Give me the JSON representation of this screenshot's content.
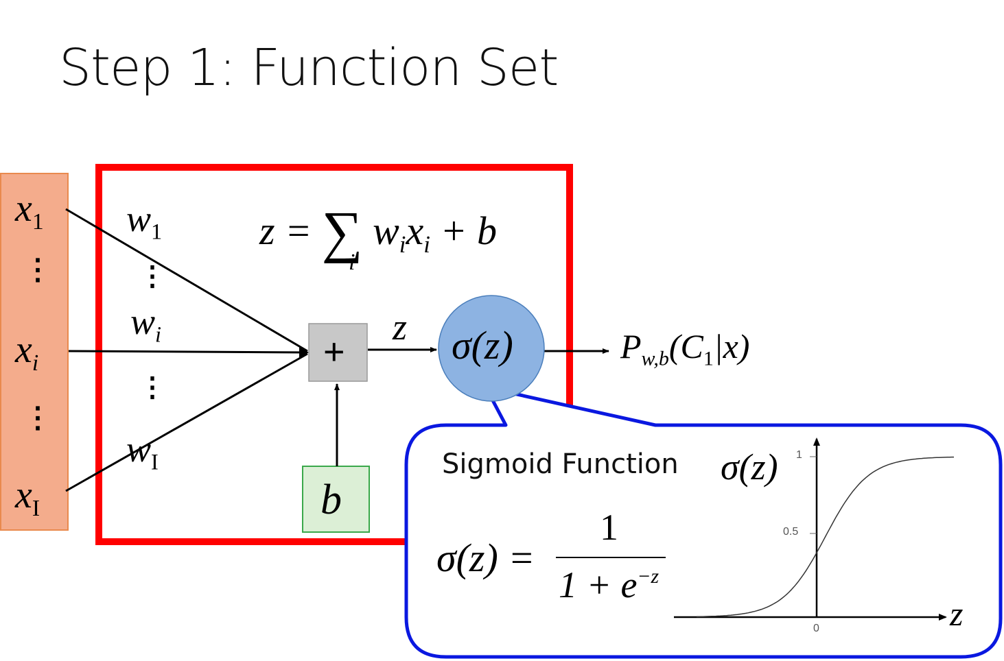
{
  "title": "Step 1: Function Set",
  "inputs": {
    "x1": "x",
    "x1_sub": "1",
    "xi": "x",
    "xi_sub": "i",
    "xI": "x",
    "xI_sub": "I",
    "dots": "⋮"
  },
  "weights": {
    "w1": "w",
    "w1_sub": "1",
    "wi": "w",
    "wi_sub": "i",
    "wI": "w",
    "wI_sub": "I",
    "dots": "⋮"
  },
  "formula_z": {
    "lhs": "z =",
    "sum": "∑",
    "sum_index": "i",
    "term_w": "w",
    "term_w_sub": "i",
    "term_x": "x",
    "term_x_sub": "i",
    "rhs": "+ b"
  },
  "adder": {
    "symbol": "+"
  },
  "bias": {
    "symbol": "b"
  },
  "z_label": "z",
  "sigma_node": {
    "label": "σ(z)"
  },
  "output": {
    "P": "P",
    "sub": "w,b",
    "args": "(C",
    "args_sub": "1",
    "args_end": "|x)"
  },
  "callout": {
    "title": "Sigmoid Function",
    "formula_lhs": "σ(z) =",
    "formula_num": "1",
    "formula_den": "1 + e",
    "formula_den_exp": "−z",
    "plot_ylabel": "σ(z)",
    "plot_xlabel": "z",
    "tick_y1": "1",
    "tick_y05": "0.5",
    "tick_x0": "0"
  },
  "colors": {
    "red_box": "#ff0000",
    "input_fill": "#f4ac8c",
    "input_border": "#e98a4e",
    "adder_fill": "#c8c8c8",
    "bias_fill": "#dcefd6",
    "bias_border": "#3aa84a",
    "sigma_fill": "#8db3e2",
    "callout_border": "#0a18e0"
  },
  "chart_data": {
    "type": "line",
    "series": [
      {
        "x": [
          -6,
          -4,
          -2,
          -1,
          0,
          1,
          2,
          4,
          6
        ],
        "y": [
          0.0025,
          0.018,
          0.119,
          0.269,
          0.5,
          0.731,
          0.881,
          0.982,
          0.9975
        ]
      }
    ],
    "xlabel": "z",
    "ylabel": "σ(z)",
    "yticks": [
      "0.5",
      "1"
    ],
    "xticks": [
      "0"
    ],
    "ylim": [
      0,
      1
    ],
    "xlim": [
      -6,
      6
    ]
  }
}
